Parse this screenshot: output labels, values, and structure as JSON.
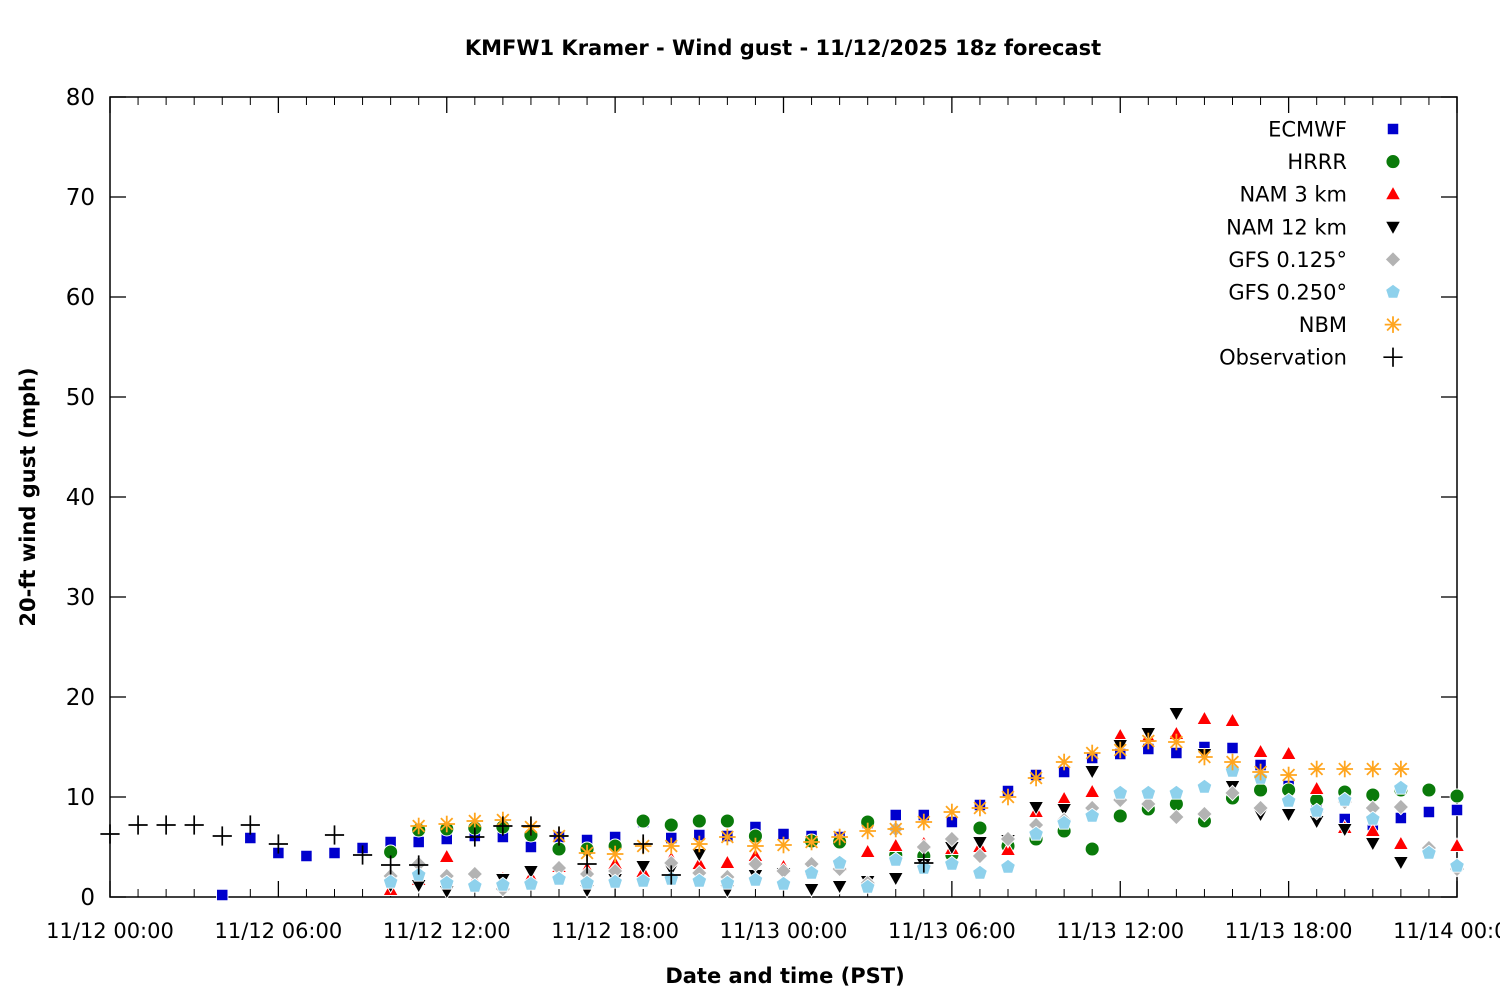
{
  "title": "KMFW1 Kramer - Wind gust - 11/12/2025 18z forecast",
  "chart_data": {
    "type": "scatter",
    "title": "KMFW1 Kramer - Wind gust - 11/12/2025 18z forecast",
    "xlabel": "Date and time (PST)",
    "ylabel": "20-ft wind gust (mph)",
    "ylim": [
      0,
      80
    ],
    "xlim_hours": [
      0,
      48
    ],
    "x_unit": "hours since 11/12 00:00 PST",
    "grid": false,
    "legend_position": "top-right-inside",
    "yticks": [
      0,
      10,
      20,
      30,
      40,
      50,
      60,
      70,
      80
    ],
    "xticks": [
      {
        "h": 0,
        "label": "11/12 00:00"
      },
      {
        "h": 6,
        "label": "11/12 06:00"
      },
      {
        "h": 12,
        "label": "11/12 12:00"
      },
      {
        "h": 18,
        "label": "11/12 18:00"
      },
      {
        "h": 24,
        "label": "11/13 00:00"
      },
      {
        "h": 30,
        "label": "11/13 06:00"
      },
      {
        "h": 36,
        "label": "11/13 12:00"
      },
      {
        "h": 42,
        "label": "11/13 18:00"
      },
      {
        "h": 48,
        "label": "11/14 00:00"
      }
    ],
    "x_minor_every": 1,
    "series": [
      {
        "name": "ECMWF",
        "marker": "square",
        "color": "#0000cd",
        "points": [
          [
            4,
            0.2
          ],
          [
            5,
            5.9
          ],
          [
            6,
            4.4
          ],
          [
            7,
            4.1
          ],
          [
            8,
            4.4
          ],
          [
            9,
            4.9
          ],
          [
            10,
            5.5
          ],
          [
            11,
            5.5
          ],
          [
            12,
            5.8
          ],
          [
            13,
            6.1
          ],
          [
            14,
            6.0
          ],
          [
            15,
            5.0
          ],
          [
            16,
            6.0
          ],
          [
            17,
            5.7
          ],
          [
            18,
            6.0
          ],
          [
            19,
            7.5
          ],
          [
            20,
            5.9
          ],
          [
            21,
            6.2
          ],
          [
            22,
            6.1
          ],
          [
            23,
            7.0
          ],
          [
            24,
            6.3
          ],
          [
            25,
            6.1
          ],
          [
            26,
            6.0
          ],
          [
            27,
            7.4
          ],
          [
            28,
            8.2
          ],
          [
            29,
            8.2
          ],
          [
            30,
            7.5
          ],
          [
            31,
            9.2
          ],
          [
            32,
            10.6
          ],
          [
            33,
            12.2
          ],
          [
            34,
            12.5
          ],
          [
            35,
            13.9
          ],
          [
            36,
            14.3
          ],
          [
            37,
            14.8
          ],
          [
            38,
            14.4
          ],
          [
            39,
            15.0
          ],
          [
            40,
            14.9
          ],
          [
            41,
            13.2
          ],
          [
            42,
            11.1
          ],
          [
            43,
            8.9
          ],
          [
            44,
            7.8
          ],
          [
            45,
            7.2
          ],
          [
            46,
            7.9
          ],
          [
            47,
            8.5
          ],
          [
            48,
            8.7
          ]
        ]
      },
      {
        "name": "HRRR",
        "marker": "circle",
        "color": "#0a7a0a",
        "points": [
          [
            10,
            4.5
          ],
          [
            11,
            6.7
          ],
          [
            12,
            6.8
          ],
          [
            13,
            6.9
          ],
          [
            14,
            7.0
          ],
          [
            15,
            6.2
          ],
          [
            16,
            4.8
          ],
          [
            17,
            4.8
          ],
          [
            18,
            5.1
          ],
          [
            19,
            7.6
          ],
          [
            20,
            7.2
          ],
          [
            21,
            7.6
          ],
          [
            22,
            7.6
          ],
          [
            23,
            6.1
          ],
          [
            25,
            5.6
          ],
          [
            26,
            5.5
          ],
          [
            27,
            7.5
          ],
          [
            28,
            4.2
          ],
          [
            29,
            4.1
          ],
          [
            30,
            4.2
          ],
          [
            31,
            6.9
          ],
          [
            32,
            5.1
          ],
          [
            33,
            5.8
          ],
          [
            34,
            6.6
          ],
          [
            35,
            4.8
          ],
          [
            36,
            8.1
          ],
          [
            37,
            8.8
          ],
          [
            38,
            9.3
          ],
          [
            39,
            7.6
          ],
          [
            40,
            9.9
          ],
          [
            41,
            10.7
          ],
          [
            42,
            10.7
          ],
          [
            43,
            9.7
          ],
          [
            44,
            10.5
          ],
          [
            45,
            10.2
          ],
          [
            46,
            10.7
          ],
          [
            47,
            10.7
          ],
          [
            48,
            10.1
          ]
        ]
      },
      {
        "name": "NAM 3 km",
        "marker": "triangle-up",
        "color": "#ff0000",
        "points": [
          [
            10,
            0.7
          ],
          [
            11,
            1.7
          ],
          [
            12,
            4.0
          ],
          [
            13,
            1.6
          ],
          [
            14,
            1.8
          ],
          [
            15,
            2.0
          ],
          [
            16,
            3.0
          ],
          [
            17,
            2.8
          ],
          [
            18,
            3.3
          ],
          [
            19,
            2.5
          ],
          [
            20,
            3.8
          ],
          [
            21,
            3.3
          ],
          [
            22,
            3.4
          ],
          [
            23,
            4.1
          ],
          [
            24,
            3.0
          ],
          [
            25,
            2.7
          ],
          [
            26,
            3.1
          ],
          [
            27,
            4.5
          ],
          [
            28,
            5.1
          ],
          [
            29,
            5.3
          ],
          [
            30,
            4.8
          ],
          [
            31,
            5.0
          ],
          [
            32,
            4.7
          ],
          [
            33,
            8.5
          ],
          [
            34,
            9.8
          ],
          [
            35,
            10.5
          ],
          [
            36,
            16.1
          ],
          [
            37,
            16.0
          ],
          [
            38,
            16.3
          ],
          [
            39,
            17.8
          ],
          [
            40,
            17.6
          ],
          [
            41,
            14.5
          ],
          [
            42,
            14.3
          ],
          [
            43,
            10.8
          ],
          [
            44,
            6.9
          ],
          [
            45,
            6.6
          ],
          [
            46,
            5.3
          ],
          [
            47,
            5.0
          ],
          [
            48,
            5.1
          ]
        ]
      },
      {
        "name": "NAM 12 km",
        "marker": "triangle-down",
        "color": "#000000",
        "points": [
          [
            10,
            1.2
          ],
          [
            11,
            1.2
          ],
          [
            12,
            0.6
          ],
          [
            14,
            1.8
          ],
          [
            15,
            2.6
          ],
          [
            17,
            0.7
          ],
          [
            18,
            1.8
          ],
          [
            19,
            3.1
          ],
          [
            20,
            2.8
          ],
          [
            21,
            4.3
          ],
          [
            22,
            0.7
          ],
          [
            23,
            2.2
          ],
          [
            24,
            2.4
          ],
          [
            25,
            0.8
          ],
          [
            26,
            1.1
          ],
          [
            27,
            1.6
          ],
          [
            28,
            1.9
          ],
          [
            29,
            3.3
          ],
          [
            30,
            5.0
          ],
          [
            31,
            5.5
          ],
          [
            32,
            5.7
          ],
          [
            33,
            9.0
          ],
          [
            34,
            8.8
          ],
          [
            35,
            12.6
          ],
          [
            36,
            15.2
          ],
          [
            37,
            16.4
          ],
          [
            38,
            18.4
          ],
          [
            39,
            14.3
          ],
          [
            40,
            11.1
          ],
          [
            41,
            8.3
          ],
          [
            42,
            8.3
          ],
          [
            43,
            7.6
          ],
          [
            44,
            6.8
          ],
          [
            45,
            5.4
          ],
          [
            46,
            3.5
          ]
        ]
      },
      {
        "name": "GFS 0.125°",
        "marker": "diamond",
        "color": "#b3b3b3",
        "points": [
          [
            10,
            2.1
          ],
          [
            11,
            3.3
          ],
          [
            12,
            2.1
          ],
          [
            13,
            2.3
          ],
          [
            14,
            0.8
          ],
          [
            16,
            2.9
          ],
          [
            17,
            2.3
          ],
          [
            18,
            2.6
          ],
          [
            20,
            3.4
          ],
          [
            21,
            2.4
          ],
          [
            22,
            2.0
          ],
          [
            23,
            3.3
          ],
          [
            24,
            2.6
          ],
          [
            25,
            3.3
          ],
          [
            26,
            2.8
          ],
          [
            27,
            1.4
          ],
          [
            28,
            6.8
          ],
          [
            29,
            5.0
          ],
          [
            30,
            5.8
          ],
          [
            31,
            4.1
          ],
          [
            32,
            5.8
          ],
          [
            33,
            7.2
          ],
          [
            34,
            7.7
          ],
          [
            35,
            8.9
          ],
          [
            36,
            9.7
          ],
          [
            37,
            9.3
          ],
          [
            38,
            8.0
          ],
          [
            39,
            8.3
          ],
          [
            40,
            10.4
          ],
          [
            41,
            8.9
          ],
          [
            43,
            8.5
          ],
          [
            44,
            9.5
          ],
          [
            45,
            8.9
          ],
          [
            46,
            9.0
          ],
          [
            47,
            4.9
          ],
          [
            48,
            2.8
          ]
        ]
      },
      {
        "name": "GFS 0.250°",
        "marker": "pentagon",
        "color": "#8ed1ec",
        "points": [
          [
            10,
            1.5
          ],
          [
            11,
            2.2
          ],
          [
            12,
            1.4
          ],
          [
            13,
            1.1
          ],
          [
            14,
            1.2
          ],
          [
            15,
            1.3
          ],
          [
            16,
            1.8
          ],
          [
            17,
            1.4
          ],
          [
            18,
            1.5
          ],
          [
            19,
            1.6
          ],
          [
            20,
            1.8
          ],
          [
            21,
            1.6
          ],
          [
            22,
            1.4
          ],
          [
            23,
            1.7
          ],
          [
            24,
            1.3
          ],
          [
            25,
            2.4
          ],
          [
            26,
            3.4
          ],
          [
            27,
            1.0
          ],
          [
            28,
            3.7
          ],
          [
            29,
            2.9
          ],
          [
            30,
            3.3
          ],
          [
            31,
            2.4
          ],
          [
            32,
            3.0
          ],
          [
            33,
            6.3
          ],
          [
            34,
            7.4
          ],
          [
            35,
            8.1
          ],
          [
            36,
            10.4
          ],
          [
            37,
            10.4
          ],
          [
            38,
            10.4
          ],
          [
            39,
            11.0
          ],
          [
            40,
            12.6
          ],
          [
            41,
            11.9
          ],
          [
            42,
            9.6
          ],
          [
            43,
            8.6
          ],
          [
            44,
            9.7
          ],
          [
            45,
            7.8
          ],
          [
            46,
            10.9
          ],
          [
            47,
            4.4
          ],
          [
            48,
            3.1
          ]
        ]
      },
      {
        "name": "NBM",
        "marker": "asterisk",
        "color": "#ffa51e",
        "points": [
          [
            11,
            7.1
          ],
          [
            12,
            7.3
          ],
          [
            13,
            7.6
          ],
          [
            14,
            7.7
          ],
          [
            15,
            7.0
          ],
          [
            16,
            6.1
          ],
          [
            17,
            4.4
          ],
          [
            18,
            4.3
          ],
          [
            19,
            5.1
          ],
          [
            20,
            5.1
          ],
          [
            21,
            5.3
          ],
          [
            22,
            6.0
          ],
          [
            23,
            5.1
          ],
          [
            24,
            5.2
          ],
          [
            25,
            5.5
          ],
          [
            26,
            6.0
          ],
          [
            27,
            6.6
          ],
          [
            28,
            6.8
          ],
          [
            29,
            7.5
          ],
          [
            30,
            8.5
          ],
          [
            31,
            8.9
          ],
          [
            32,
            10.0
          ],
          [
            33,
            11.9
          ],
          [
            34,
            13.5
          ],
          [
            35,
            14.4
          ],
          [
            36,
            14.7
          ],
          [
            37,
            15.6
          ],
          [
            38,
            15.5
          ],
          [
            39,
            14.0
          ],
          [
            40,
            13.5
          ],
          [
            41,
            12.5
          ],
          [
            42,
            12.2
          ],
          [
            43,
            12.8
          ],
          [
            44,
            12.8
          ],
          [
            45,
            12.8
          ],
          [
            46,
            12.8
          ]
        ]
      },
      {
        "name": "Observation",
        "marker": "plus",
        "color": "#000000",
        "points": [
          [
            0,
            6.3
          ],
          [
            1,
            7.2
          ],
          [
            2,
            7.2
          ],
          [
            3,
            7.2
          ],
          [
            4,
            6.1
          ],
          [
            5,
            7.2
          ],
          [
            6,
            5.3
          ],
          [
            8,
            6.2
          ],
          [
            9,
            4.2
          ],
          [
            10,
            3.2
          ],
          [
            11,
            3.2
          ],
          [
            13,
            6.0
          ],
          [
            14,
            7.1
          ],
          [
            15,
            7.1
          ],
          [
            16,
            6.1
          ],
          [
            17,
            3.3
          ],
          [
            19,
            5.3
          ],
          [
            20,
            2.2
          ],
          [
            29,
            3.4
          ]
        ]
      }
    ]
  }
}
